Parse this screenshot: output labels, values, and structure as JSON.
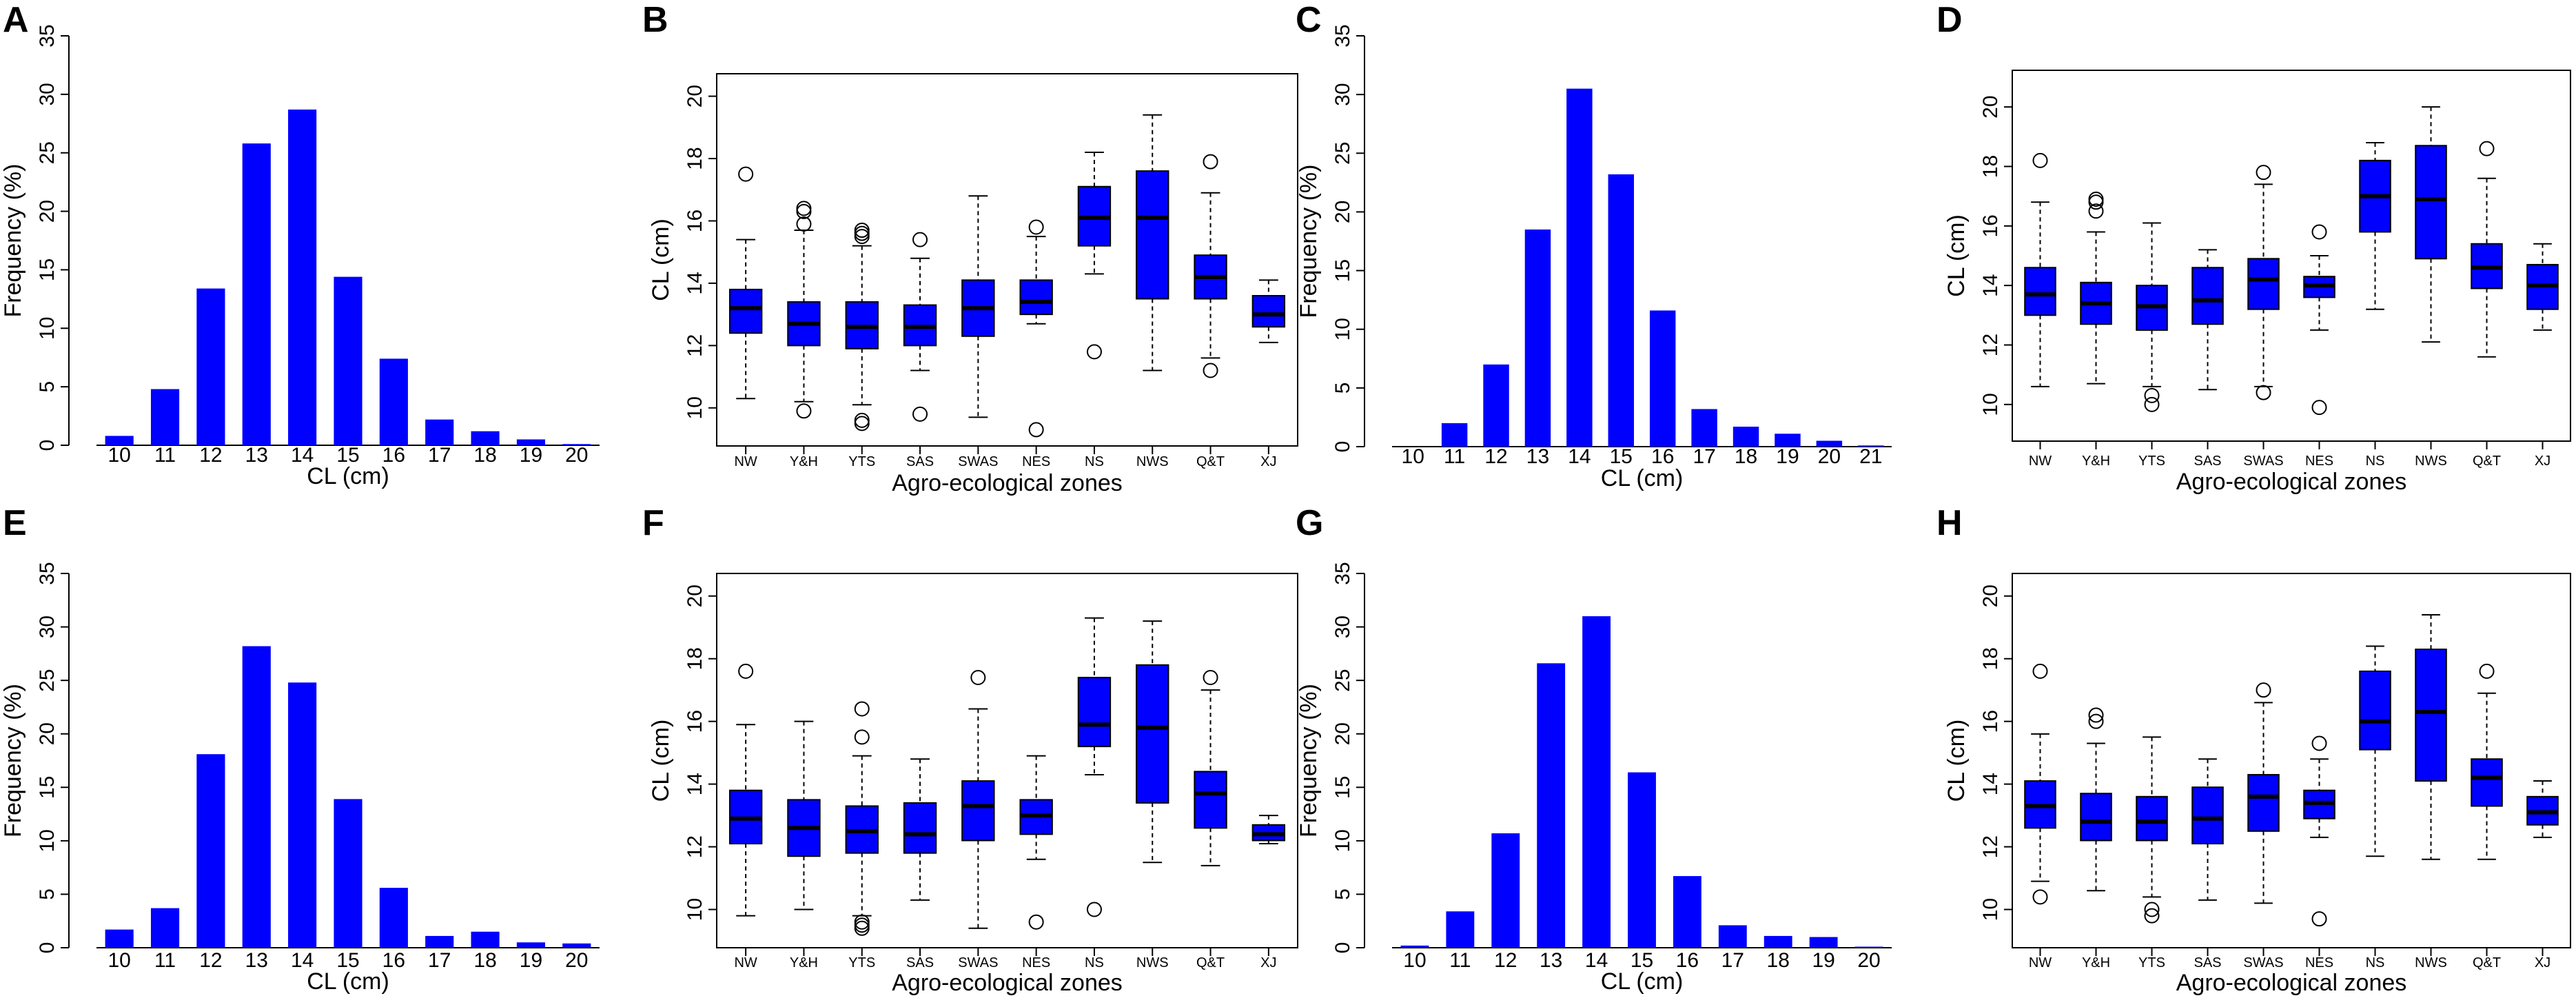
{
  "colors": {
    "bar": "#0000FF",
    "axis": "#000000"
  },
  "charts": [
    {
      "panel": "A",
      "type": "bar",
      "xlabel": "CL (cm)",
      "ylabel": "Frequency (%)",
      "categories": [
        "10",
        "11",
        "12",
        "13",
        "14",
        "15",
        "16",
        "17",
        "18",
        "19",
        "20"
      ],
      "values": [
        0.8,
        4.8,
        13.4,
        25.8,
        28.7,
        14.4,
        7.4,
        2.2,
        1.2,
        0.5,
        0.1
      ],
      "ylim": [
        0,
        35
      ],
      "yticks": [
        0,
        5,
        10,
        15,
        20,
        25,
        30,
        35
      ]
    },
    {
      "panel": "B",
      "type": "box",
      "xlabel": "Agro-ecological zones",
      "ylabel": "CL (cm)",
      "categories": [
        "NW",
        "Y&H",
        "YTS",
        "SAS",
        "SWAS",
        "NES",
        "NS",
        "NWS",
        "Q&T",
        "XJ"
      ],
      "ylim": [
        9,
        20.5
      ],
      "yticks": [
        10,
        12,
        14,
        16,
        18,
        20
      ],
      "boxes": [
        {
          "min": 10.3,
          "q1": 12.4,
          "median": 13.2,
          "q3": 13.8,
          "max": 15.4,
          "outliers": [
            17.5
          ]
        },
        {
          "min": 10.2,
          "q1": 12.0,
          "median": 12.7,
          "q3": 13.4,
          "max": 15.7,
          "outliers": [
            9.9,
            15.9,
            16.3,
            16.4
          ]
        },
        {
          "min": 10.1,
          "q1": 11.9,
          "median": 12.6,
          "q3": 13.4,
          "max": 15.2,
          "outliers": [
            9.5,
            9.6,
            15.5,
            15.6,
            15.7
          ]
        },
        {
          "min": 11.2,
          "q1": 12.0,
          "median": 12.6,
          "q3": 13.3,
          "max": 14.8,
          "outliers": [
            9.8,
            15.4
          ]
        },
        {
          "min": 9.7,
          "q1": 12.3,
          "median": 13.2,
          "q3": 14.1,
          "max": 16.8,
          "outliers": []
        },
        {
          "min": 12.7,
          "q1": 13.0,
          "median": 13.4,
          "q3": 14.1,
          "max": 15.5,
          "outliers": [
            9.3,
            15.8
          ]
        },
        {
          "min": 14.3,
          "q1": 15.2,
          "median": 16.1,
          "q3": 17.1,
          "max": 18.2,
          "outliers": [
            11.8
          ]
        },
        {
          "min": 11.2,
          "q1": 13.5,
          "median": 16.1,
          "q3": 17.6,
          "max": 19.4,
          "outliers": []
        },
        {
          "min": 11.6,
          "q1": 13.5,
          "median": 14.2,
          "q3": 14.9,
          "max": 16.9,
          "outliers": [
            11.2,
            17.9
          ]
        },
        {
          "min": 12.1,
          "q1": 12.6,
          "median": 13.0,
          "q3": 13.6,
          "max": 14.1,
          "outliers": []
        }
      ]
    },
    {
      "panel": "C",
      "type": "bar",
      "xlabel": "CL (cm)",
      "ylabel": "Frequency (%)",
      "categories": [
        "10",
        "11",
        "12",
        "13",
        "14",
        "15",
        "16",
        "17",
        "18",
        "19",
        "20",
        "21"
      ],
      "values": [
        0.0,
        2.0,
        7.0,
        18.5,
        30.5,
        23.2,
        11.6,
        3.2,
        1.7,
        1.1,
        0.5,
        0.1
      ],
      "ylim": [
        0,
        35
      ],
      "yticks": [
        0,
        5,
        10,
        15,
        20,
        25,
        30,
        35
      ]
    },
    {
      "panel": "D",
      "type": "box",
      "xlabel": "Agro-ecological zones",
      "ylabel": "CL (cm)",
      "categories": [
        "NW",
        "Y&H",
        "YTS",
        "SAS",
        "SWAS",
        "NES",
        "NS",
        "NWS",
        "Q&T",
        "XJ"
      ],
      "ylim": [
        9,
        21
      ],
      "yticks": [
        10,
        12,
        14,
        16,
        18,
        20
      ],
      "boxes": [
        {
          "min": 10.6,
          "q1": 13.0,
          "median": 13.7,
          "q3": 14.6,
          "max": 16.8,
          "outliers": [
            18.2
          ]
        },
        {
          "min": 10.7,
          "q1": 12.7,
          "median": 13.4,
          "q3": 14.1,
          "max": 15.8,
          "outliers": [
            16.5,
            16.8,
            16.9
          ]
        },
        {
          "min": 10.6,
          "q1": 12.5,
          "median": 13.3,
          "q3": 14.0,
          "max": 16.1,
          "outliers": [
            10.0,
            10.3
          ]
        },
        {
          "min": 10.5,
          "q1": 12.7,
          "median": 13.5,
          "q3": 14.6,
          "max": 15.2,
          "outliers": []
        },
        {
          "min": 10.6,
          "q1": 13.2,
          "median": 14.2,
          "q3": 14.9,
          "max": 17.4,
          "outliers": [
            10.4,
            17.8
          ]
        },
        {
          "min": 12.5,
          "q1": 13.6,
          "median": 14.0,
          "q3": 14.3,
          "max": 15.0,
          "outliers": [
            9.9,
            15.8
          ]
        },
        {
          "min": 13.2,
          "q1": 15.8,
          "median": 17.0,
          "q3": 18.2,
          "max": 18.8,
          "outliers": []
        },
        {
          "min": 12.1,
          "q1": 14.9,
          "median": 16.9,
          "q3": 18.7,
          "max": 20.0,
          "outliers": []
        },
        {
          "min": 11.6,
          "q1": 13.9,
          "median": 14.6,
          "q3": 15.4,
          "max": 17.6,
          "outliers": [
            18.6
          ]
        },
        {
          "min": 12.5,
          "q1": 13.2,
          "median": 14.0,
          "q3": 14.7,
          "max": 15.4,
          "outliers": []
        }
      ]
    },
    {
      "panel": "E",
      "type": "bar",
      "xlabel": "CL (cm)",
      "ylabel": "Frequency (%)",
      "categories": [
        "10",
        "11",
        "12",
        "13",
        "14",
        "15",
        "16",
        "17",
        "18",
        "19",
        "20"
      ],
      "values": [
        1.7,
        3.7,
        18.1,
        28.2,
        24.8,
        13.9,
        5.6,
        1.1,
        1.5,
        0.5,
        0.4
      ],
      "ylim": [
        0,
        35
      ],
      "yticks": [
        0,
        5,
        10,
        15,
        20,
        25,
        30,
        35
      ]
    },
    {
      "panel": "F",
      "type": "box",
      "xlabel": "Agro-ecological zones",
      "ylabel": "CL (cm)",
      "categories": [
        "NW",
        "Y&H",
        "YTS",
        "SAS",
        "SWAS",
        "NES",
        "NS",
        "NWS",
        "Q&T",
        "XJ"
      ],
      "ylim": [
        9,
        20.5
      ],
      "yticks": [
        10,
        12,
        14,
        16,
        18,
        20
      ],
      "boxes": [
        {
          "min": 9.8,
          "q1": 12.1,
          "median": 12.9,
          "q3": 13.8,
          "max": 15.9,
          "outliers": [
            17.6
          ]
        },
        {
          "min": 10.0,
          "q1": 11.7,
          "median": 12.6,
          "q3": 13.5,
          "max": 16.0,
          "outliers": []
        },
        {
          "min": 9.8,
          "q1": 11.8,
          "median": 12.5,
          "q3": 13.3,
          "max": 14.9,
          "outliers": [
            9.4,
            9.5,
            9.6,
            15.5,
            16.4
          ]
        },
        {
          "min": 10.3,
          "q1": 11.8,
          "median": 12.4,
          "q3": 13.4,
          "max": 14.8,
          "outliers": []
        },
        {
          "min": 9.4,
          "q1": 12.2,
          "median": 13.3,
          "q3": 14.1,
          "max": 16.4,
          "outliers": [
            17.4
          ]
        },
        {
          "min": 11.6,
          "q1": 12.4,
          "median": 13.0,
          "q3": 13.5,
          "max": 14.9,
          "outliers": [
            9.6
          ]
        },
        {
          "min": 14.3,
          "q1": 15.2,
          "median": 15.9,
          "q3": 17.4,
          "max": 19.3,
          "outliers": [
            10.0
          ]
        },
        {
          "min": 11.5,
          "q1": 13.4,
          "median": 15.8,
          "q3": 17.8,
          "max": 19.2,
          "outliers": []
        },
        {
          "min": 11.4,
          "q1": 12.6,
          "median": 13.7,
          "q3": 14.4,
          "max": 17.0,
          "outliers": [
            17.4
          ]
        },
        {
          "min": 12.1,
          "q1": 12.2,
          "median": 12.4,
          "q3": 12.7,
          "max": 13.0,
          "outliers": []
        }
      ]
    },
    {
      "panel": "G",
      "type": "bar",
      "xlabel": "CL (cm)",
      "ylabel": "Frequency (%)",
      "categories": [
        "10",
        "11",
        "12",
        "13",
        "14",
        "15",
        "16",
        "17",
        "18",
        "19",
        "20"
      ],
      "values": [
        0.2,
        3.4,
        10.7,
        26.6,
        31.0,
        16.4,
        6.7,
        2.1,
        1.1,
        1.0,
        0.1
      ],
      "ylim": [
        0,
        35
      ],
      "yticks": [
        0,
        5,
        10,
        15,
        20,
        25,
        30,
        35
      ]
    },
    {
      "panel": "H",
      "type": "box",
      "xlabel": "Agro-ecological zones",
      "ylabel": "CL (cm)",
      "categories": [
        "NW",
        "Y&H",
        "YTS",
        "SAS",
        "SWAS",
        "NES",
        "NS",
        "NWS",
        "Q&T",
        "XJ"
      ],
      "ylim": [
        9,
        20.5
      ],
      "yticks": [
        10,
        12,
        14,
        16,
        18,
        20
      ],
      "boxes": [
        {
          "min": 10.9,
          "q1": 12.6,
          "median": 13.3,
          "q3": 14.1,
          "max": 15.6,
          "outliers": [
            10.4,
            17.6
          ]
        },
        {
          "min": 10.6,
          "q1": 12.2,
          "median": 12.8,
          "q3": 13.7,
          "max": 15.3,
          "outliers": [
            16.0,
            16.2
          ]
        },
        {
          "min": 10.4,
          "q1": 12.2,
          "median": 12.8,
          "q3": 13.6,
          "max": 15.5,
          "outliers": [
            9.8,
            10.0
          ]
        },
        {
          "min": 10.3,
          "q1": 12.1,
          "median": 12.9,
          "q3": 13.9,
          "max": 14.8,
          "outliers": []
        },
        {
          "min": 10.2,
          "q1": 12.5,
          "median": 13.6,
          "q3": 14.3,
          "max": 16.6,
          "outliers": [
            17.0
          ]
        },
        {
          "min": 12.3,
          "q1": 12.9,
          "median": 13.4,
          "q3": 13.8,
          "max": 14.8,
          "outliers": [
            9.7,
            15.3
          ]
        },
        {
          "min": 11.7,
          "q1": 15.1,
          "median": 16.0,
          "q3": 17.6,
          "max": 18.4,
          "outliers": []
        },
        {
          "min": 11.6,
          "q1": 14.1,
          "median": 16.3,
          "q3": 18.3,
          "max": 19.4,
          "outliers": []
        },
        {
          "min": 11.6,
          "q1": 13.3,
          "median": 14.2,
          "q3": 14.8,
          "max": 16.9,
          "outliers": [
            17.6
          ]
        },
        {
          "min": 12.3,
          "q1": 12.7,
          "median": 13.1,
          "q3": 13.6,
          "max": 14.1,
          "outliers": []
        }
      ]
    }
  ]
}
